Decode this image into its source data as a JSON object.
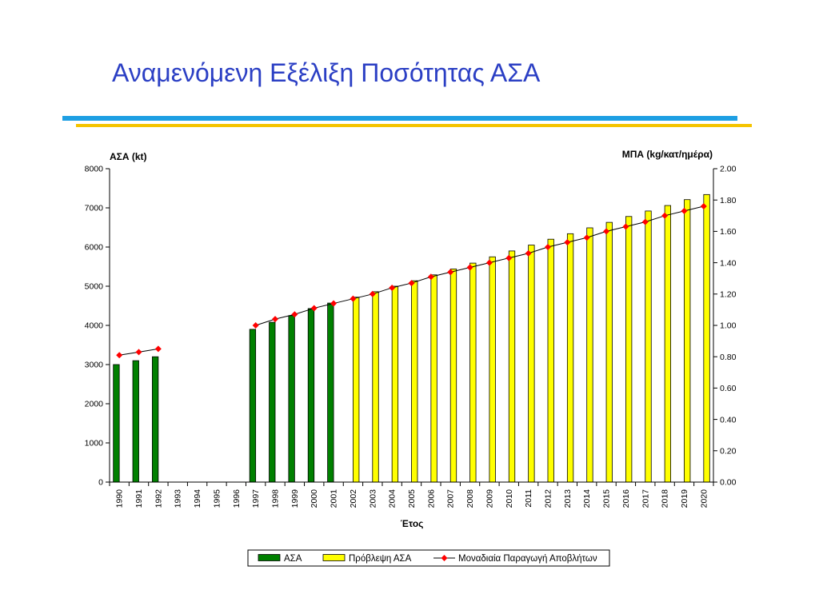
{
  "slide": {
    "title": "Αναμενόμενη Εξέλιξη Ποσότητας ΑΣΑ",
    "colors": {
      "title": "#2b3fc4",
      "rule_blue": "#1e9fe3",
      "rule_yellow": "#f5c400"
    }
  },
  "chart_data": {
    "type": "bar",
    "xlabel": "Έτος",
    "ylabel": "ΑΣΑ (kt)",
    "ylabel_right": "ΜΠΑ (kg/κατ/ημέρα)",
    "ylim_left": [
      0,
      8000
    ],
    "ylim_right": [
      0,
      2
    ],
    "yticks_left": [
      "0",
      "1000",
      "2000",
      "3000",
      "4000",
      "5000",
      "6000",
      "7000",
      "8000"
    ],
    "yticks_right": [
      "0.00",
      "0.20",
      "0.40",
      "0.60",
      "0.80",
      "1.00",
      "1.20",
      "1.40",
      "1.60",
      "1.80",
      "2.00"
    ],
    "categories": [
      "1990",
      "1991",
      "1992",
      "1993",
      "1994",
      "1995",
      "1996",
      "1997",
      "1998",
      "1999",
      "2000",
      "2001",
      "2002",
      "2003",
      "2004",
      "2005",
      "2006",
      "2007",
      "2008",
      "2009",
      "2010",
      "2011",
      "2012",
      "2013",
      "2014",
      "2015",
      "2016",
      "2017",
      "2018",
      "2019",
      "2020"
    ],
    "series": [
      {
        "name": "ΑΣΑ",
        "type": "bar",
        "axis": "left",
        "color": "#008000",
        "values": [
          3000,
          3100,
          3200,
          null,
          null,
          null,
          null,
          3900,
          4080,
          4250,
          4430,
          4570,
          null,
          null,
          null,
          null,
          null,
          null,
          null,
          null,
          null,
          null,
          null,
          null,
          null,
          null,
          null,
          null,
          null,
          null,
          null
        ]
      },
      {
        "name": "Πρόβλεψη ΑΣΑ",
        "type": "bar",
        "axis": "left",
        "color": "#ffff00",
        "values": [
          null,
          null,
          null,
          null,
          null,
          null,
          null,
          null,
          null,
          null,
          null,
          null,
          4720,
          4860,
          5000,
          5140,
          5290,
          5440,
          5590,
          5750,
          5900,
          6050,
          6200,
          6340,
          6490,
          6630,
          6780,
          6920,
          7060,
          7210,
          7340
        ]
      },
      {
        "name": "Μοναδιαία Παραγωγή Αποβλήτων",
        "type": "line",
        "axis": "right",
        "color": "#000000",
        "marker": "diamond",
        "marker_color": "#ff0000",
        "values": [
          0.81,
          0.83,
          0.85,
          null,
          null,
          null,
          null,
          1.0,
          1.04,
          1.07,
          1.11,
          1.14,
          1.17,
          1.2,
          1.24,
          1.27,
          1.31,
          1.34,
          1.37,
          1.4,
          1.43,
          1.46,
          1.5,
          1.53,
          1.56,
          1.6,
          1.63,
          1.66,
          1.7,
          1.73,
          1.76
        ]
      }
    ],
    "grid": false,
    "legend": "bottom"
  }
}
